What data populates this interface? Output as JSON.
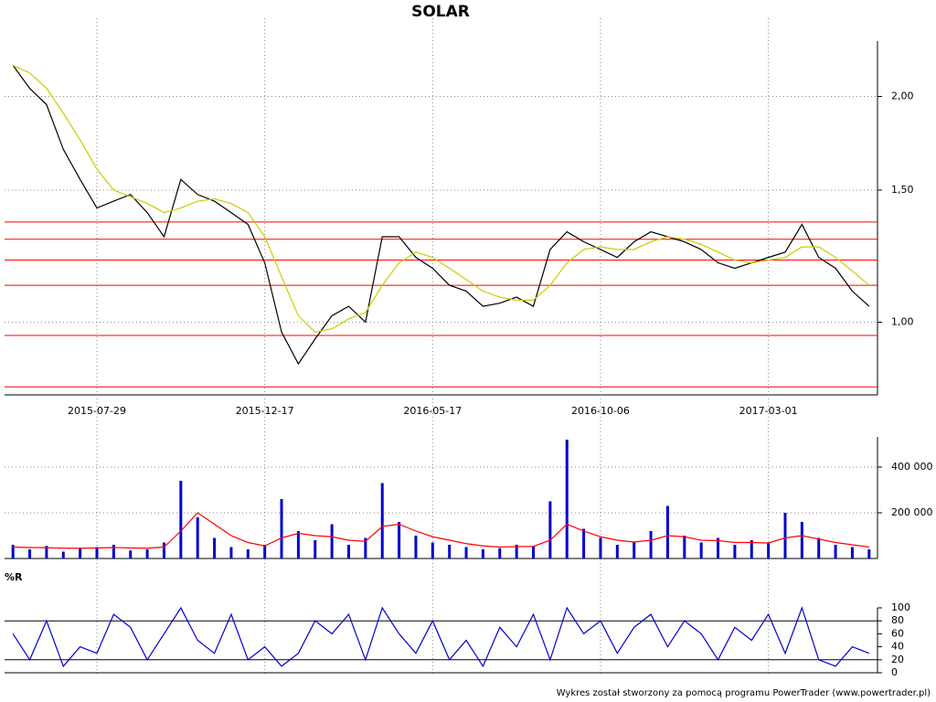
{
  "chart_data": [
    {
      "type": "line",
      "title": "SOLAR",
      "categories": [
        null,
        null,
        null,
        null,
        null,
        "2015-07-29",
        null,
        null,
        null,
        null,
        null,
        null,
        null,
        null,
        null,
        "2015-12-17",
        null,
        null,
        null,
        null,
        null,
        null,
        null,
        null,
        null,
        "2016-05-17",
        null,
        null,
        null,
        null,
        null,
        null,
        null,
        null,
        null,
        "2016-10-06",
        null,
        null,
        null,
        null,
        null,
        null,
        null,
        null,
        null,
        "2017-03-01",
        null,
        null,
        null,
        null,
        null,
        null
      ],
      "series": [
        {
          "color": "#000000",
          "values": [
            2.2,
            2.05,
            1.95,
            1.7,
            1.55,
            1.42,
            1.45,
            1.48,
            1.4,
            1.3,
            1.55,
            1.48,
            1.45,
            1.4,
            1.35,
            1.2,
            0.97,
            0.88,
            0.95,
            1.02,
            1.05,
            1.0,
            1.3,
            1.3,
            1.22,
            1.18,
            1.12,
            1.1,
            1.05,
            1.06,
            1.08,
            1.05,
            1.25,
            1.32,
            1.28,
            1.25,
            1.22,
            1.28,
            1.32,
            1.3,
            1.28,
            1.25,
            1.2,
            1.18,
            1.2,
            1.22,
            1.24,
            1.35,
            1.22,
            1.18,
            1.1,
            1.05
          ]
        },
        {
          "color": "#cccc00",
          "values": [
            2.2,
            2.15,
            2.05,
            1.9,
            1.75,
            1.6,
            1.5,
            1.47,
            1.44,
            1.4,
            1.42,
            1.45,
            1.46,
            1.44,
            1.4,
            1.3,
            1.15,
            1.02,
            0.97,
            0.98,
            1.01,
            1.03,
            1.12,
            1.2,
            1.24,
            1.22,
            1.18,
            1.14,
            1.1,
            1.08,
            1.07,
            1.07,
            1.12,
            1.2,
            1.25,
            1.26,
            1.25,
            1.25,
            1.28,
            1.3,
            1.29,
            1.27,
            1.24,
            1.21,
            1.2,
            1.21,
            1.22,
            1.26,
            1.26,
            1.22,
            1.17,
            1.12
          ]
        }
      ],
      "ylim": [
        0.8,
        2.37
      ],
      "log": true,
      "grid": true,
      "yticks": [
        {
          "value": 1,
          "label": "1,00"
        },
        {
          "value": 1.5,
          "label": "1,50"
        },
        {
          "value": 2,
          "label": "2,00"
        }
      ],
      "hlines": {
        "color": "#ff0000",
        "values": [
          1.36,
          1.29,
          1.21,
          1.12,
          0.96,
          0.82
        ]
      }
    },
    {
      "type": "bar",
      "series": [
        {
          "color": "#0000cc",
          "values": [
            60000,
            40000,
            55000,
            30000,
            45000,
            50000,
            60000,
            35000,
            40000,
            70000,
            340000,
            180000,
            90000,
            50000,
            40000,
            60000,
            260000,
            120000,
            80000,
            150000,
            60000,
            90000,
            330000,
            160000,
            100000,
            70000,
            60000,
            50000,
            40000,
            45000,
            60000,
            55000,
            250000,
            520000,
            130000,
            90000,
            60000,
            70000,
            120000,
            230000,
            100000,
            70000,
            90000,
            60000,
            80000,
            70000,
            200000,
            160000,
            90000,
            60000,
            50000,
            40000
          ]
        },
        {
          "color": "#ff0000",
          "kind": "line",
          "values": [
            50000,
            48000,
            47000,
            45000,
            45000,
            46000,
            48000,
            46000,
            45000,
            50000,
            120000,
            200000,
            150000,
            100000,
            70000,
            55000,
            90000,
            110000,
            100000,
            95000,
            80000,
            75000,
            140000,
            150000,
            120000,
            95000,
            80000,
            65000,
            55000,
            50000,
            52000,
            53000,
            80000,
            150000,
            120000,
            95000,
            80000,
            72000,
            80000,
            100000,
            95000,
            80000,
            78000,
            70000,
            70000,
            68000,
            90000,
            100000,
            85000,
            70000,
            60000,
            50000
          ]
        }
      ],
      "ylim": [
        0,
        532000
      ],
      "grid": true,
      "yticks": [
        {
          "value": 200000,
          "label": "200 000"
        },
        {
          "value": 400000,
          "label": "400 000"
        }
      ]
    },
    {
      "type": "line",
      "title": "%R",
      "series": [
        {
          "color": "#0000cc",
          "values": [
            60,
            20,
            80,
            10,
            40,
            30,
            90,
            70,
            20,
            60,
            100,
            50,
            30,
            90,
            20,
            40,
            10,
            30,
            80,
            60,
            90,
            20,
            100,
            60,
            30,
            80,
            20,
            50,
            10,
            70,
            40,
            90,
            20,
            100,
            60,
            80,
            30,
            70,
            90,
            40,
            80,
            60,
            20,
            70,
            50,
            90,
            30,
            100,
            20,
            10,
            40,
            30
          ]
        }
      ],
      "ylim": [
        0,
        100
      ],
      "grid": true,
      "yticks": [
        0,
        20,
        40,
        60,
        80,
        100
      ],
      "reflines": {
        "color": "#000000",
        "values": [
          20,
          80
        ]
      }
    }
  ],
  "footer": "Wykres został stworzony za pomocą programu PowerTrader (www.powertrader.pl)"
}
